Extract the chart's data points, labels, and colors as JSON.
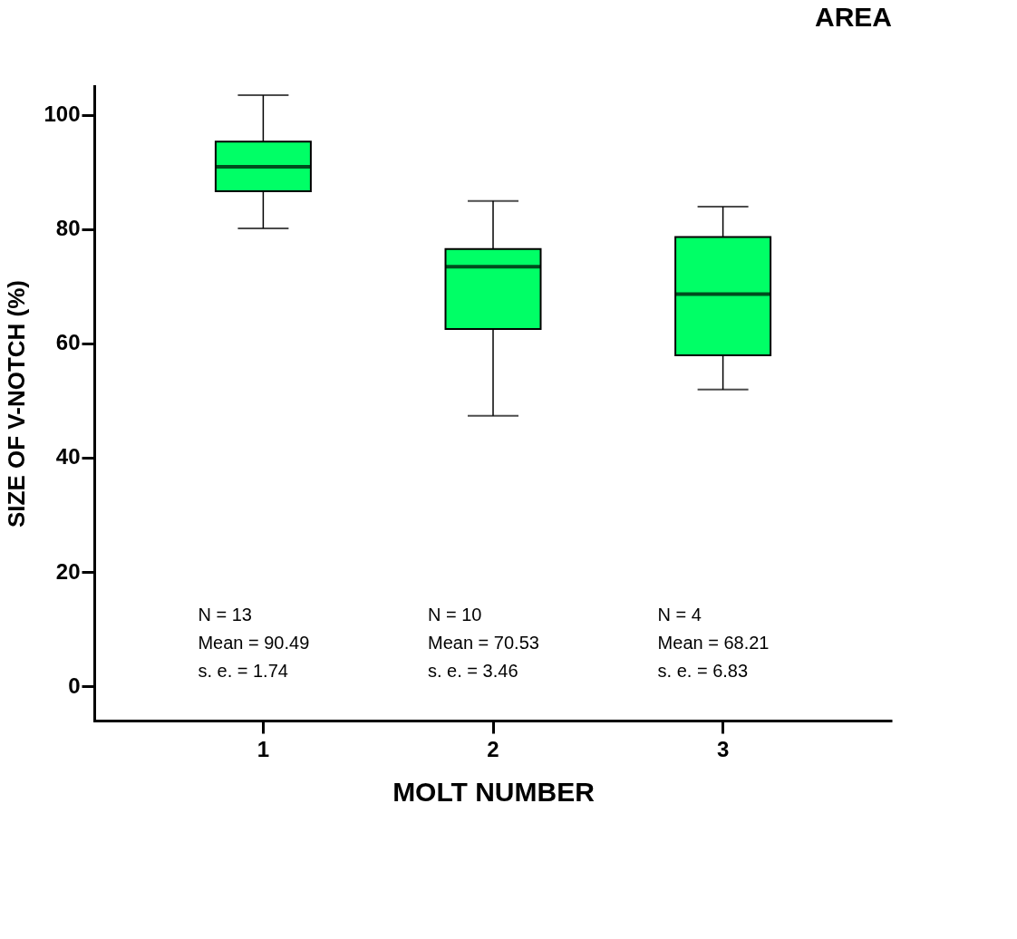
{
  "chart_data": {
    "type": "box",
    "title": "AREA",
    "xlabel": "MOLT NUMBER",
    "ylabel": "SIZE OF V-NOTCH (%)",
    "categories": [
      "1",
      "2",
      "3"
    ],
    "series": [
      {
        "color": "#00ff66",
        "boxes": [
          {
            "low": 80.1,
            "q1": 86.6,
            "median": 90.9,
            "q3": 95.3,
            "high": 103.4
          },
          {
            "low": 47.3,
            "q1": 62.5,
            "median": 73.4,
            "q3": 76.5,
            "high": 84.9
          },
          {
            "low": 51.9,
            "q1": 57.9,
            "median": 68.6,
            "q3": 78.6,
            "high": 83.9
          }
        ]
      }
    ],
    "ylim": [
      -6,
      105
    ],
    "yticks": [
      0,
      20,
      40,
      60,
      80,
      100
    ],
    "grid": false,
    "annotations": [
      "N = 13\nMean = 90.49\ns. e. = 1.74",
      "N = 10\nMean = 70.53\ns. e. = 3.46",
      "N = 4\nMean = 68.21\ns. e. = 6.83"
    ]
  }
}
